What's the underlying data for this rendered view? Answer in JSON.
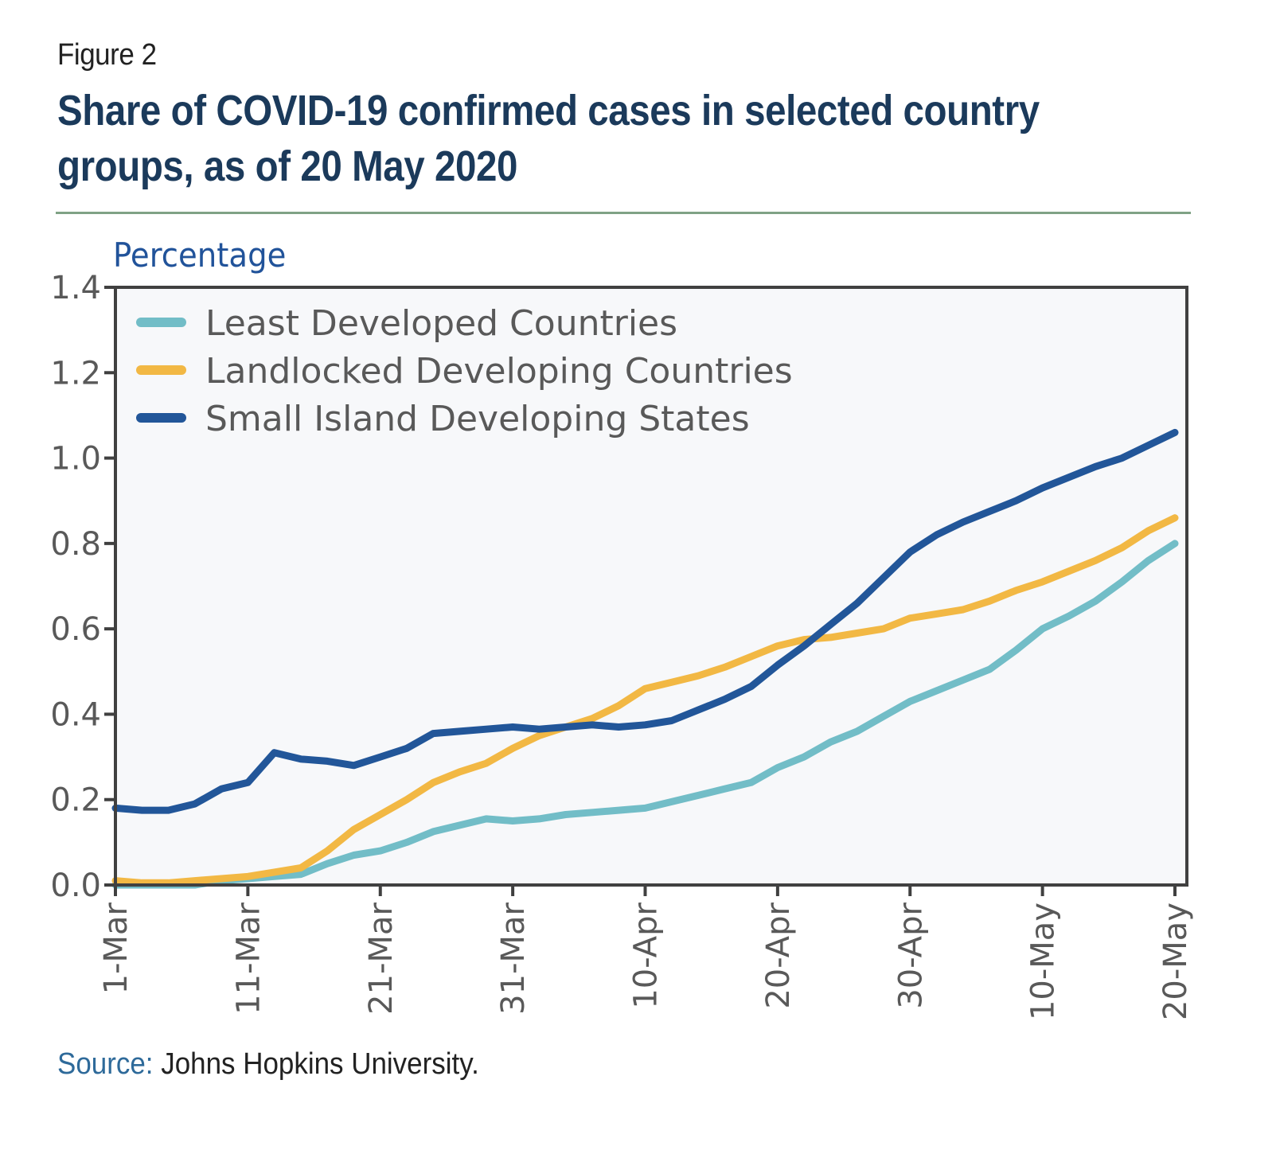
{
  "figure_label": "Figure 2",
  "title": "Share of COVID-19 confirmed cases in selected country groups, as of 20 May 2020",
  "source": {
    "key": "Source:",
    "text": "Johns Hopkins University."
  },
  "chart_data": {
    "type": "line",
    "title": "Share of COVID-19 confirmed cases in selected country groups, as of 20 May 2020",
    "xlabel": "",
    "ylabel": "Percentage",
    "ylim": [
      0,
      1.4
    ],
    "yticks": [
      "0.0",
      "0.2",
      "0.4",
      "0.6",
      "0.8",
      "1.0",
      "1.2",
      "1.4"
    ],
    "ytick_values": [
      0,
      0.2,
      0.4,
      0.6,
      0.8,
      1.0,
      1.2,
      1.4
    ],
    "xlim_days": [
      0,
      80
    ],
    "xticks": [
      "1-Mar",
      "11-Mar",
      "21-Mar",
      "31-Mar",
      "10-Apr",
      "20-Apr",
      "30-Apr",
      "10-May",
      "20-May"
    ],
    "xtick_days": [
      0,
      10,
      20,
      30,
      40,
      50,
      60,
      70,
      80
    ],
    "grid": false,
    "legend_position": "top-left",
    "x_days": [
      0,
      2,
      4,
      6,
      8,
      10,
      12,
      14,
      16,
      18,
      20,
      22,
      24,
      26,
      28,
      30,
      32,
      34,
      36,
      38,
      40,
      42,
      44,
      46,
      48,
      50,
      52,
      54,
      56,
      58,
      60,
      62,
      64,
      66,
      68,
      70,
      72,
      74,
      76,
      78,
      80
    ],
    "series": [
      {
        "name": "Least Developed Countries",
        "color": "#72bdc7",
        "values": [
          0.0,
          0.0,
          0.0,
          0.0,
          0.01,
          0.015,
          0.02,
          0.025,
          0.05,
          0.07,
          0.08,
          0.1,
          0.125,
          0.14,
          0.155,
          0.15,
          0.155,
          0.165,
          0.17,
          0.175,
          0.18,
          0.195,
          0.21,
          0.225,
          0.24,
          0.275,
          0.3,
          0.335,
          0.36,
          0.395,
          0.43,
          0.455,
          0.48,
          0.505,
          0.55,
          0.6,
          0.63,
          0.665,
          0.71,
          0.76,
          0.8
        ]
      },
      {
        "name": "Landlocked Developing Countries",
        "color": "#f2b844",
        "values": [
          0.01,
          0.005,
          0.005,
          0.01,
          0.015,
          0.02,
          0.03,
          0.04,
          0.08,
          0.13,
          0.165,
          0.2,
          0.24,
          0.265,
          0.285,
          0.32,
          0.35,
          0.37,
          0.39,
          0.42,
          0.46,
          0.475,
          0.49,
          0.51,
          0.535,
          0.56,
          0.575,
          0.58,
          0.59,
          0.6,
          0.625,
          0.635,
          0.645,
          0.665,
          0.69,
          0.71,
          0.735,
          0.76,
          0.79,
          0.83,
          0.86
        ]
      },
      {
        "name": "Small Island Developing States",
        "color": "#225699",
        "values": [
          0.18,
          0.175,
          0.175,
          0.19,
          0.225,
          0.24,
          0.31,
          0.295,
          0.29,
          0.28,
          0.3,
          0.32,
          0.355,
          0.36,
          0.365,
          0.37,
          0.365,
          0.37,
          0.375,
          0.37,
          0.375,
          0.385,
          0.41,
          0.435,
          0.465,
          0.515,
          0.56,
          0.61,
          0.66,
          0.72,
          0.78,
          0.82,
          0.85,
          0.875,
          0.9,
          0.93,
          0.955,
          0.98,
          1.0,
          1.03,
          1.06
        ]
      }
    ]
  }
}
